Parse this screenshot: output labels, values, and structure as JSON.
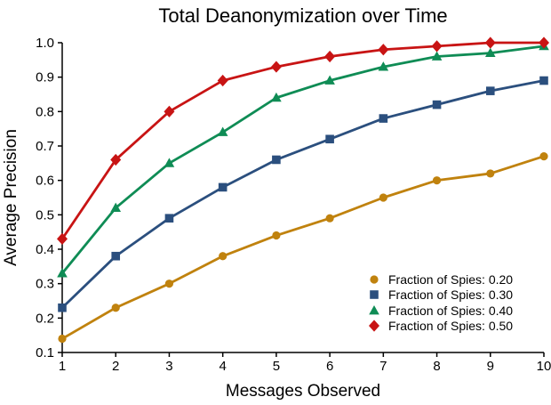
{
  "figure": {
    "background": "#FFFFFF",
    "text_color": "#000000",
    "axis_color": "#000000"
  },
  "chart_data": {
    "type": "line",
    "title": "Total Deanonymization over Time",
    "xlabel": "Messages Observed",
    "ylabel": "Average Precision",
    "x": [
      1,
      2,
      3,
      4,
      5,
      6,
      7,
      8,
      9,
      10
    ],
    "xlim": [
      1,
      10
    ],
    "ylim": [
      0.1,
      1.0
    ],
    "x_ticks": [
      1,
      2,
      3,
      4,
      5,
      6,
      7,
      8,
      9,
      10
    ],
    "y_ticks": [
      0.1,
      0.2,
      0.3,
      0.4,
      0.5,
      0.6,
      0.7,
      0.8,
      0.9,
      1.0
    ],
    "grid": false,
    "legend_position": "lower-right",
    "series": [
      {
        "name": "Fraction of Spies: 0.20",
        "marker": "circle",
        "color": "#C0820E",
        "values": [
          0.14,
          0.23,
          0.3,
          0.38,
          0.44,
          0.49,
          0.55,
          0.6,
          0.62,
          0.67
        ]
      },
      {
        "name": "Fraction of Spies: 0.30",
        "marker": "square",
        "color": "#2B4F7E",
        "values": [
          0.23,
          0.38,
          0.49,
          0.58,
          0.66,
          0.72,
          0.78,
          0.82,
          0.86,
          0.89
        ]
      },
      {
        "name": "Fraction of Spies: 0.40",
        "marker": "triangle",
        "color": "#0F8C55",
        "values": [
          0.33,
          0.52,
          0.65,
          0.74,
          0.84,
          0.89,
          0.93,
          0.96,
          0.97,
          0.99
        ]
      },
      {
        "name": "Fraction of Spies: 0.50",
        "marker": "diamond",
        "color": "#C81414",
        "values": [
          0.43,
          0.66,
          0.8,
          0.89,
          0.93,
          0.96,
          0.98,
          0.99,
          1.0,
          1.0
        ]
      }
    ]
  }
}
